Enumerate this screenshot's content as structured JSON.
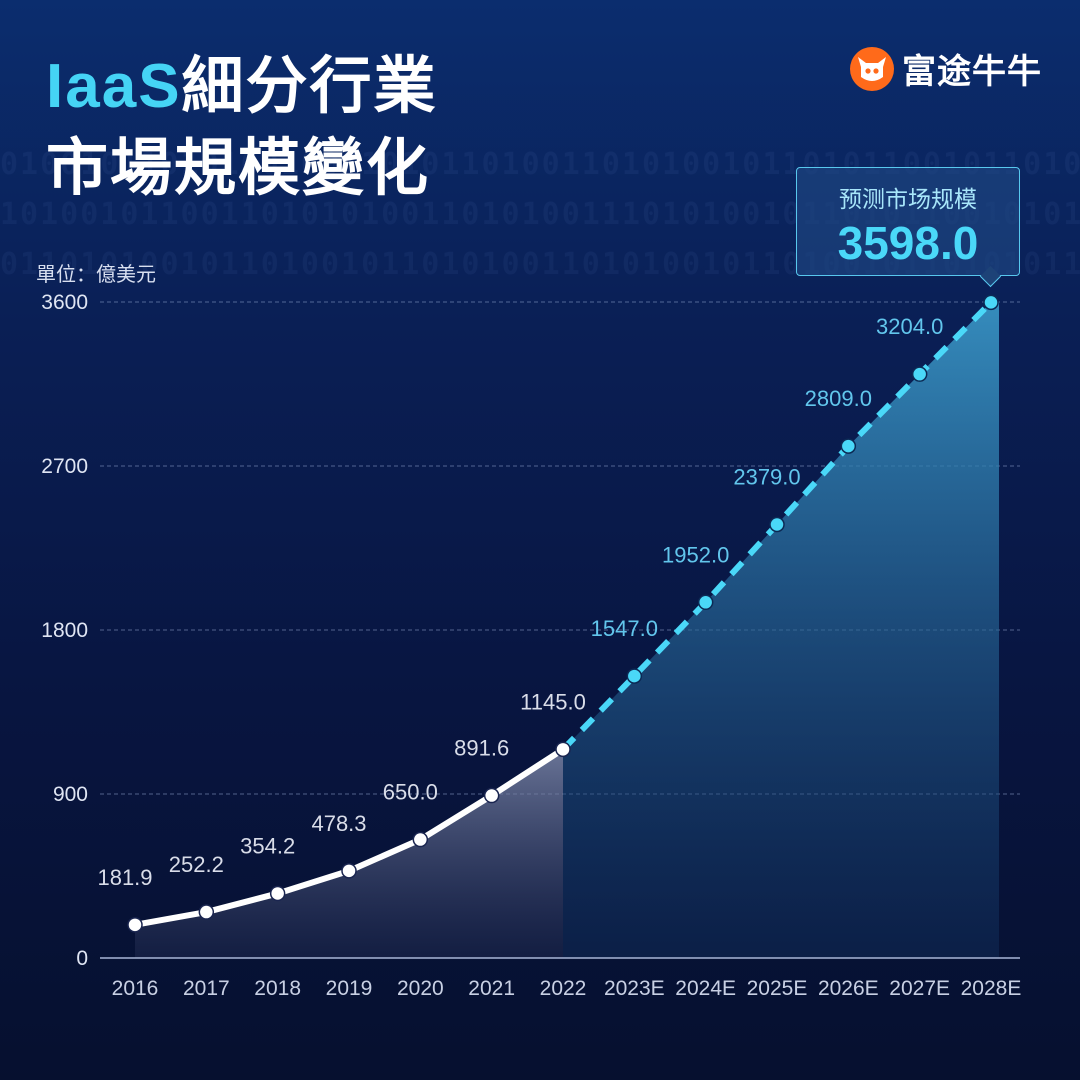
{
  "title": {
    "accent": "IaaS",
    "line1_rest": "細分行業",
    "line2": "市場規模變化"
  },
  "brand": {
    "name": "富途牛牛"
  },
  "unit_label": "單位：億美元",
  "callout": {
    "label": "预测市场规模",
    "value": "3598.0"
  },
  "colors": {
    "accent": "#45d4f5",
    "actual_line": "#ffffff",
    "forecast_line": "#4ad8f8",
    "brand": "#ff6a1a"
  },
  "chart_data": {
    "type": "line",
    "categories": [
      "2016",
      "2017",
      "2018",
      "2019",
      "2020",
      "2021",
      "2022",
      "2023E",
      "2024E",
      "2025E",
      "2026E",
      "2027E",
      "2028E"
    ],
    "values": [
      181.9,
      252.2,
      354.2,
      478.3,
      650.0,
      891.6,
      1145.0,
      1547.0,
      1952.0,
      2379.0,
      2809.0,
      3204.0,
      3598.0
    ],
    "labels": [
      "181.9",
      "252.2",
      "354.2",
      "478.3",
      "650.0",
      "891.6",
      "1145.0",
      "1547.0",
      "1952.0",
      "2379.0",
      "2809.0",
      "3204.0",
      ""
    ],
    "actual_count": 7,
    "yticks": [
      0,
      900,
      1800,
      2700,
      3600
    ],
    "ylim": [
      0,
      3600
    ],
    "grid": true,
    "line_styles": {
      "actual": "solid",
      "forecast": "dashed"
    }
  }
}
